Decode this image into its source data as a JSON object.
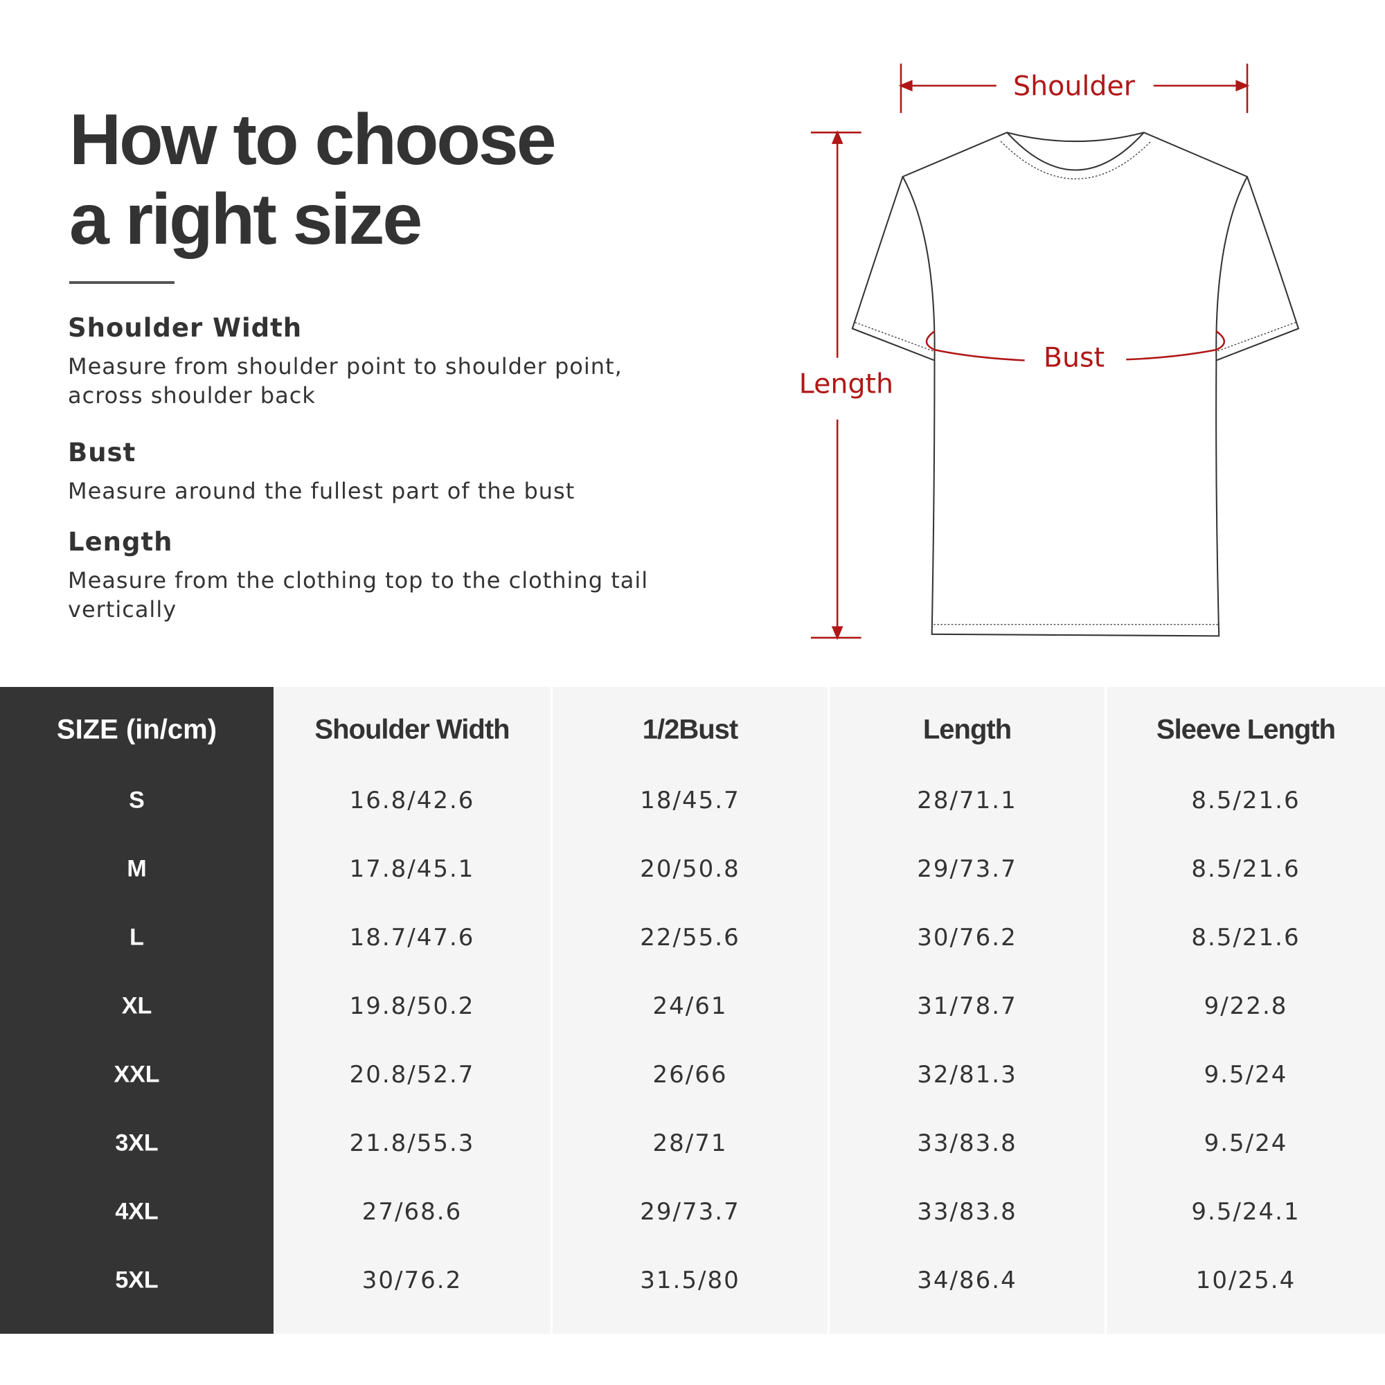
{
  "title": {
    "line1": "How to choose",
    "line2": "a right size"
  },
  "guide": [
    {
      "heading": "Shoulder Width",
      "description_lines": [
        "Measure from shoulder point to shoulder point,",
        "across shoulder back"
      ]
    },
    {
      "heading": "Bust",
      "description_lines": [
        "Measure around the fullest part of the bust"
      ]
    },
    {
      "heading": "Length",
      "description_lines": [
        "Measure from the clothing top to the clothing tail",
        "vertically"
      ]
    }
  ],
  "diagram": {
    "shoulder_label": "Shoulder",
    "bust_label": "Bust",
    "length_label": "Length",
    "accent_color": "#b01717",
    "icon": "t-shirt-outline"
  },
  "table": {
    "headers": [
      "SIZE  (in/cm)",
      "Shoulder Width",
      "1/2Bust",
      "Length",
      "Sleeve Length"
    ],
    "rows": [
      [
        "S",
        "16.8/42.6",
        "18/45.7",
        "28/71.1",
        "8.5/21.6"
      ],
      [
        "M",
        "17.8/45.1",
        "20/50.8",
        "29/73.7",
        "8.5/21.6"
      ],
      [
        "L",
        "18.7/47.6",
        "22/55.6",
        "30/76.2",
        "8.5/21.6"
      ],
      [
        "XL",
        "19.8/50.2",
        "24/61",
        "31/78.7",
        "9/22.8"
      ],
      [
        "XXL",
        "20.8/52.7",
        "26/66",
        "32/81.3",
        "9.5/24"
      ],
      [
        "3XL",
        "21.8/55.3",
        "28/71",
        "33/83.8",
        "9.5/24"
      ],
      [
        "4XL",
        "27/68.6",
        "29/73.7",
        "33/83.8",
        "9.5/24.1"
      ],
      [
        "5XL",
        "30/76.2",
        "31.5/80",
        "34/86.4",
        "10/25.4"
      ]
    ],
    "colors": {
      "size_column": "#343434",
      "body": "#f5f5f5"
    }
  }
}
